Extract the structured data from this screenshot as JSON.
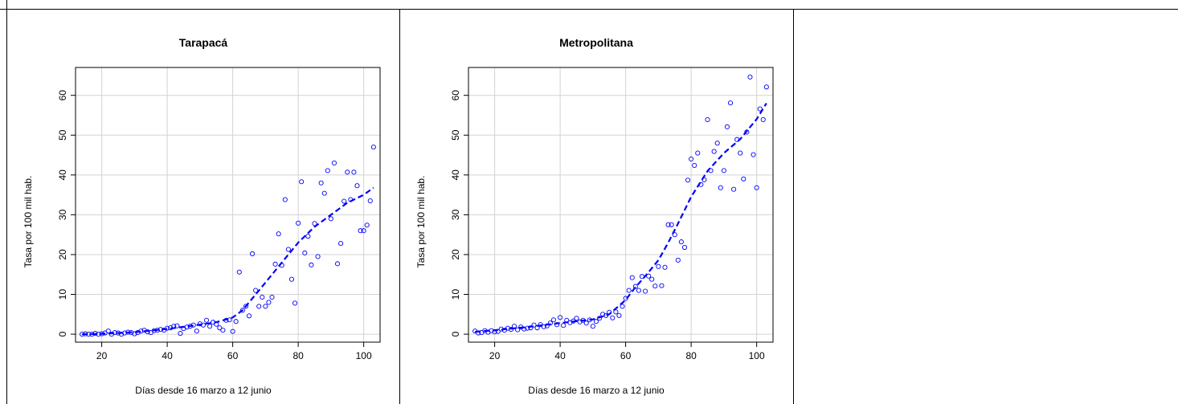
{
  "chart_data": [
    {
      "type": "scatter",
      "title": "Tarapacá",
      "xlabel": "Días desde 16 marzo a 12 junio",
      "ylabel": "Tasa por 100 mil hab.",
      "xlim": [
        12,
        105
      ],
      "ylim": [
        -2,
        67
      ],
      "xticks": [
        20,
        40,
        60,
        80,
        100
      ],
      "yticks": [
        0,
        10,
        20,
        30,
        40,
        50,
        60
      ],
      "grid": true,
      "colors": {
        "points": "#0000ff",
        "trend": "#0000ff",
        "grid": "#d3d3d3"
      },
      "series": [
        {
          "values": [
            [
              14,
              0.0
            ],
            [
              15,
              0.1
            ],
            [
              16,
              0.0
            ],
            [
              17,
              0.0
            ],
            [
              18,
              0.2
            ],
            [
              19,
              0.0
            ],
            [
              20,
              0.1
            ],
            [
              21,
              0.3
            ],
            [
              22,
              0.8
            ],
            [
              23,
              0.0
            ],
            [
              24,
              0.4
            ],
            [
              25,
              0.3
            ],
            [
              26,
              0.0
            ],
            [
              27,
              0.3
            ],
            [
              28,
              0.5
            ],
            [
              29,
              0.4
            ],
            [
              30,
              0.1
            ],
            [
              31,
              0.4
            ],
            [
              32,
              0.8
            ],
            [
              33,
              1.0
            ],
            [
              34,
              0.6
            ],
            [
              35,
              0.4
            ],
            [
              36,
              0.9
            ],
            [
              37,
              1.0
            ],
            [
              38,
              1.2
            ],
            [
              39,
              1.0
            ],
            [
              40,
              1.5
            ],
            [
              41,
              1.6
            ],
            [
              42,
              2.0
            ],
            [
              43,
              2.1
            ],
            [
              44,
              0.2
            ],
            [
              45,
              1.4
            ],
            [
              46,
              1.8
            ],
            [
              47,
              2.0
            ],
            [
              48,
              2.3
            ],
            [
              49,
              0.8
            ],
            [
              50,
              2.6
            ],
            [
              51,
              2.3
            ],
            [
              52,
              3.5
            ],
            [
              53,
              2.0
            ],
            [
              54,
              3.0
            ],
            [
              55,
              2.5
            ],
            [
              56,
              1.6
            ],
            [
              57,
              1.0
            ],
            [
              58,
              3.5
            ],
            [
              59,
              3.6
            ],
            [
              60,
              0.7
            ],
            [
              61,
              3.2
            ],
            [
              62,
              15.6
            ],
            [
              63,
              6.0
            ],
            [
              64,
              7.0
            ],
            [
              65,
              4.6
            ],
            [
              66,
              20.2
            ],
            [
              67,
              11.0
            ],
            [
              68,
              7.0
            ],
            [
              69,
              9.3
            ],
            [
              70,
              7.0
            ],
            [
              71,
              8.0
            ],
            [
              72,
              9.3
            ],
            [
              73,
              17.6
            ],
            [
              74,
              25.2
            ],
            [
              75,
              17.3
            ],
            [
              76,
              33.8
            ],
            [
              77,
              21.3
            ],
            [
              78,
              13.8
            ],
            [
              79,
              7.8
            ],
            [
              80,
              27.9
            ],
            [
              81,
              38.3
            ],
            [
              82,
              20.4
            ],
            [
              83,
              24.6
            ],
            [
              84,
              17.4
            ],
            [
              85,
              27.8
            ],
            [
              86,
              19.5
            ],
            [
              87,
              38.0
            ],
            [
              88,
              35.4
            ],
            [
              89,
              41.1
            ],
            [
              90,
              29.0
            ],
            [
              91,
              43.0
            ],
            [
              92,
              17.7
            ],
            [
              93,
              22.8
            ],
            [
              94,
              33.4
            ],
            [
              95,
              40.7
            ],
            [
              96,
              33.8
            ],
            [
              97,
              40.7
            ],
            [
              98,
              37.3
            ],
            [
              99,
              26.0
            ],
            [
              100,
              26.0
            ],
            [
              101,
              27.4
            ],
            [
              102,
              33.5
            ],
            [
              103,
              47.0
            ]
          ]
        }
      ],
      "trend": [
        [
          14,
          0.0
        ],
        [
          20,
          0.1
        ],
        [
          30,
          0.5
        ],
        [
          40,
          1.3
        ],
        [
          50,
          2.4
        ],
        [
          55,
          3.0
        ],
        [
          60,
          4.2
        ],
        [
          63,
          6.0
        ],
        [
          66,
          9.0
        ],
        [
          70,
          13.0
        ],
        [
          73,
          16.0
        ],
        [
          76,
          19.0
        ],
        [
          80,
          23.0
        ],
        [
          85,
          27.0
        ],
        [
          90,
          30.0
        ],
        [
          95,
          33.0
        ],
        [
          100,
          35.0
        ],
        [
          103,
          36.8
        ]
      ]
    },
    {
      "type": "scatter",
      "title": "Metropolitana",
      "xlabel": "Días desde 16 marzo a 12 junio",
      "ylabel": "Tasa por 100 mil hab.",
      "xlim": [
        12,
        105
      ],
      "ylim": [
        -2,
        67
      ],
      "xticks": [
        20,
        40,
        60,
        80,
        100
      ],
      "yticks": [
        0,
        10,
        20,
        30,
        40,
        50,
        60
      ],
      "grid": true,
      "colors": {
        "points": "#0000ff",
        "trend": "#0000ff",
        "grid": "#d3d3d3"
      },
      "series": [
        {
          "values": [
            [
              14,
              0.8
            ],
            [
              15,
              0.3
            ],
            [
              16,
              0.4
            ],
            [
              17,
              0.9
            ],
            [
              18,
              0.5
            ],
            [
              19,
              0.9
            ],
            [
              20,
              0.6
            ],
            [
              21,
              0.7
            ],
            [
              22,
              1.3
            ],
            [
              23,
              1.0
            ],
            [
              24,
              1.5
            ],
            [
              25,
              1.2
            ],
            [
              26,
              2.0
            ],
            [
              27,
              1.1
            ],
            [
              28,
              1.8
            ],
            [
              29,
              1.3
            ],
            [
              30,
              1.5
            ],
            [
              31,
              1.6
            ],
            [
              32,
              2.3
            ],
            [
              33,
              1.6
            ],
            [
              34,
              2.4
            ],
            [
              35,
              1.9
            ],
            [
              36,
              2.1
            ],
            [
              37,
              2.8
            ],
            [
              38,
              3.6
            ],
            [
              39,
              2.4
            ],
            [
              40,
              4.2
            ],
            [
              41,
              2.2
            ],
            [
              42,
              3.5
            ],
            [
              43,
              2.9
            ],
            [
              44,
              3.3
            ],
            [
              45,
              4.0
            ],
            [
              46,
              3.1
            ],
            [
              47,
              3.5
            ],
            [
              48,
              2.8
            ],
            [
              49,
              3.6
            ],
            [
              50,
              2.0
            ],
            [
              51,
              3.2
            ],
            [
              52,
              4.0
            ],
            [
              53,
              5.0
            ],
            [
              54,
              4.7
            ],
            [
              55,
              5.5
            ],
            [
              56,
              4.1
            ],
            [
              57,
              5.6
            ],
            [
              58,
              4.7
            ],
            [
              59,
              7.0
            ],
            [
              60,
              9.0
            ],
            [
              61,
              11.0
            ],
            [
              62,
              14.2
            ],
            [
              63,
              12.0
            ],
            [
              64,
              11.0
            ],
            [
              65,
              14.5
            ],
            [
              66,
              10.8
            ],
            [
              67,
              14.6
            ],
            [
              68,
              13.8
            ],
            [
              69,
              12.1
            ],
            [
              70,
              17.0
            ],
            [
              71,
              12.2
            ],
            [
              72,
              16.8
            ],
            [
              73,
              27.5
            ],
            [
              74,
              27.5
            ],
            [
              75,
              25.0
            ],
            [
              76,
              18.6
            ],
            [
              77,
              23.2
            ],
            [
              78,
              21.8
            ],
            [
              79,
              38.7
            ],
            [
              80,
              44.0
            ],
            [
              81,
              42.4
            ],
            [
              82,
              45.5
            ],
            [
              83,
              37.6
            ],
            [
              84,
              38.8
            ],
            [
              85,
              53.9
            ],
            [
              86,
              41.1
            ],
            [
              87,
              45.9
            ],
            [
              88,
              48.0
            ],
            [
              89,
              36.8
            ],
            [
              90,
              41.1
            ],
            [
              91,
              52.1
            ],
            [
              92,
              58.1
            ],
            [
              93,
              36.4
            ],
            [
              94,
              48.9
            ],
            [
              95,
              45.5
            ],
            [
              96,
              39.0
            ],
            [
              97,
              50.8
            ],
            [
              98,
              64.6
            ],
            [
              99,
              45.1
            ],
            [
              100,
              36.8
            ],
            [
              101,
              56.6
            ],
            [
              102,
              53.9
            ],
            [
              103,
              62.1
            ]
          ]
        }
      ],
      "trend": [
        [
          14,
          0.6
        ],
        [
          20,
          1.0
        ],
        [
          30,
          1.8
        ],
        [
          40,
          2.8
        ],
        [
          50,
          3.7
        ],
        [
          55,
          5.0
        ],
        [
          60,
          8.6
        ],
        [
          63,
          11.8
        ],
        [
          66,
          14.6
        ],
        [
          70,
          18.6
        ],
        [
          73,
          23.0
        ],
        [
          76,
          27.8
        ],
        [
          80,
          34.5
        ],
        [
          85,
          41.0
        ],
        [
          90,
          45.5
        ],
        [
          95,
          49.0
        ],
        [
          100,
          54.0
        ],
        [
          103,
          58.0
        ]
      ]
    }
  ]
}
